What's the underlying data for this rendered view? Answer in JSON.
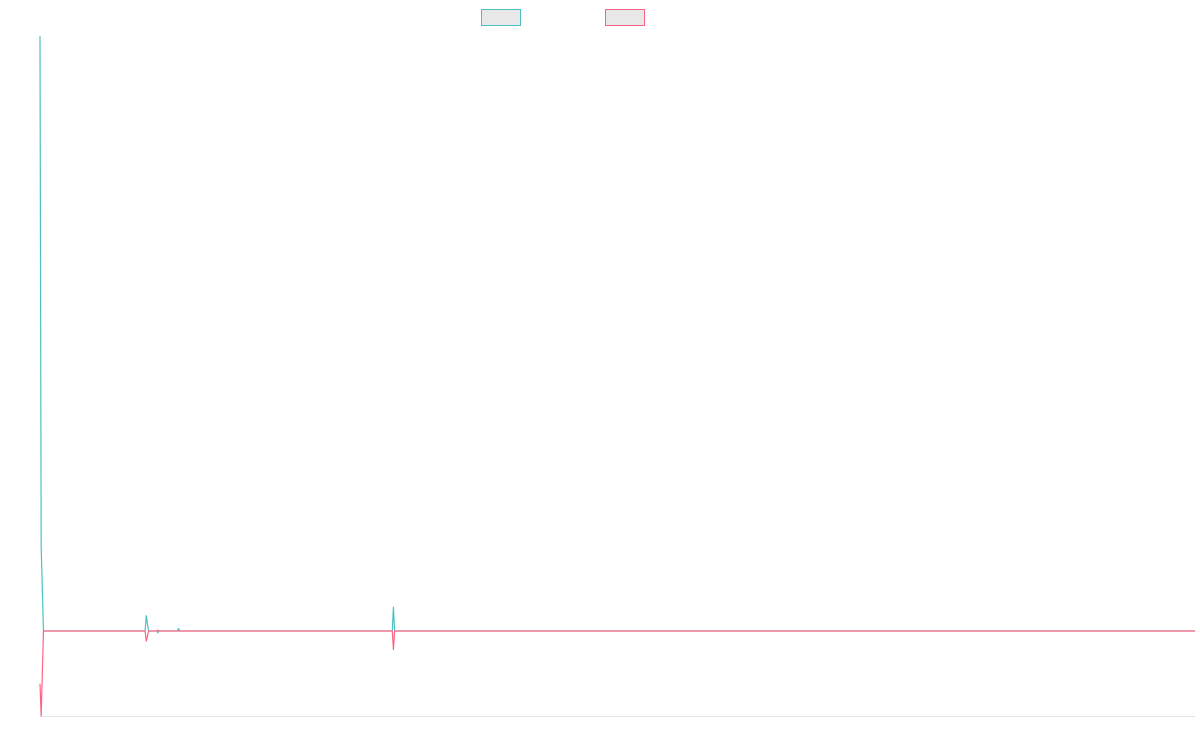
{
  "chart_data": {
    "type": "line",
    "title": "",
    "xlabel": "",
    "ylabel": "",
    "legend_position": "top-center",
    "grid": false,
    "xlim": [
      0,
      1000
    ],
    "ylim": [
      -100,
      700
    ],
    "baseline": 0,
    "series": [
      {
        "color": "#4bc0c0",
        "points": [
          [
            0,
            700
          ],
          [
            1,
            100
          ],
          [
            3,
            0
          ],
          [
            91,
            0
          ],
          [
            92,
            18
          ],
          [
            94,
            0
          ],
          [
            101,
            0
          ],
          [
            102,
            -2
          ],
          [
            103,
            0
          ],
          [
            119,
            0
          ],
          [
            120,
            3
          ],
          [
            121,
            0
          ],
          [
            305,
            0
          ],
          [
            306,
            28
          ],
          [
            307,
            0
          ],
          [
            1000,
            0
          ]
        ]
      },
      {
        "color": "#ff6384",
        "points": [
          [
            0,
            -62
          ],
          [
            1,
            -100
          ],
          [
            3,
            0
          ],
          [
            91,
            0
          ],
          [
            92,
            -12
          ],
          [
            94,
            0
          ],
          [
            101,
            0
          ],
          [
            102,
            1
          ],
          [
            103,
            0
          ],
          [
            305,
            0
          ],
          [
            306,
            -22
          ],
          [
            307,
            0
          ],
          [
            1000,
            0
          ]
        ]
      }
    ]
  }
}
